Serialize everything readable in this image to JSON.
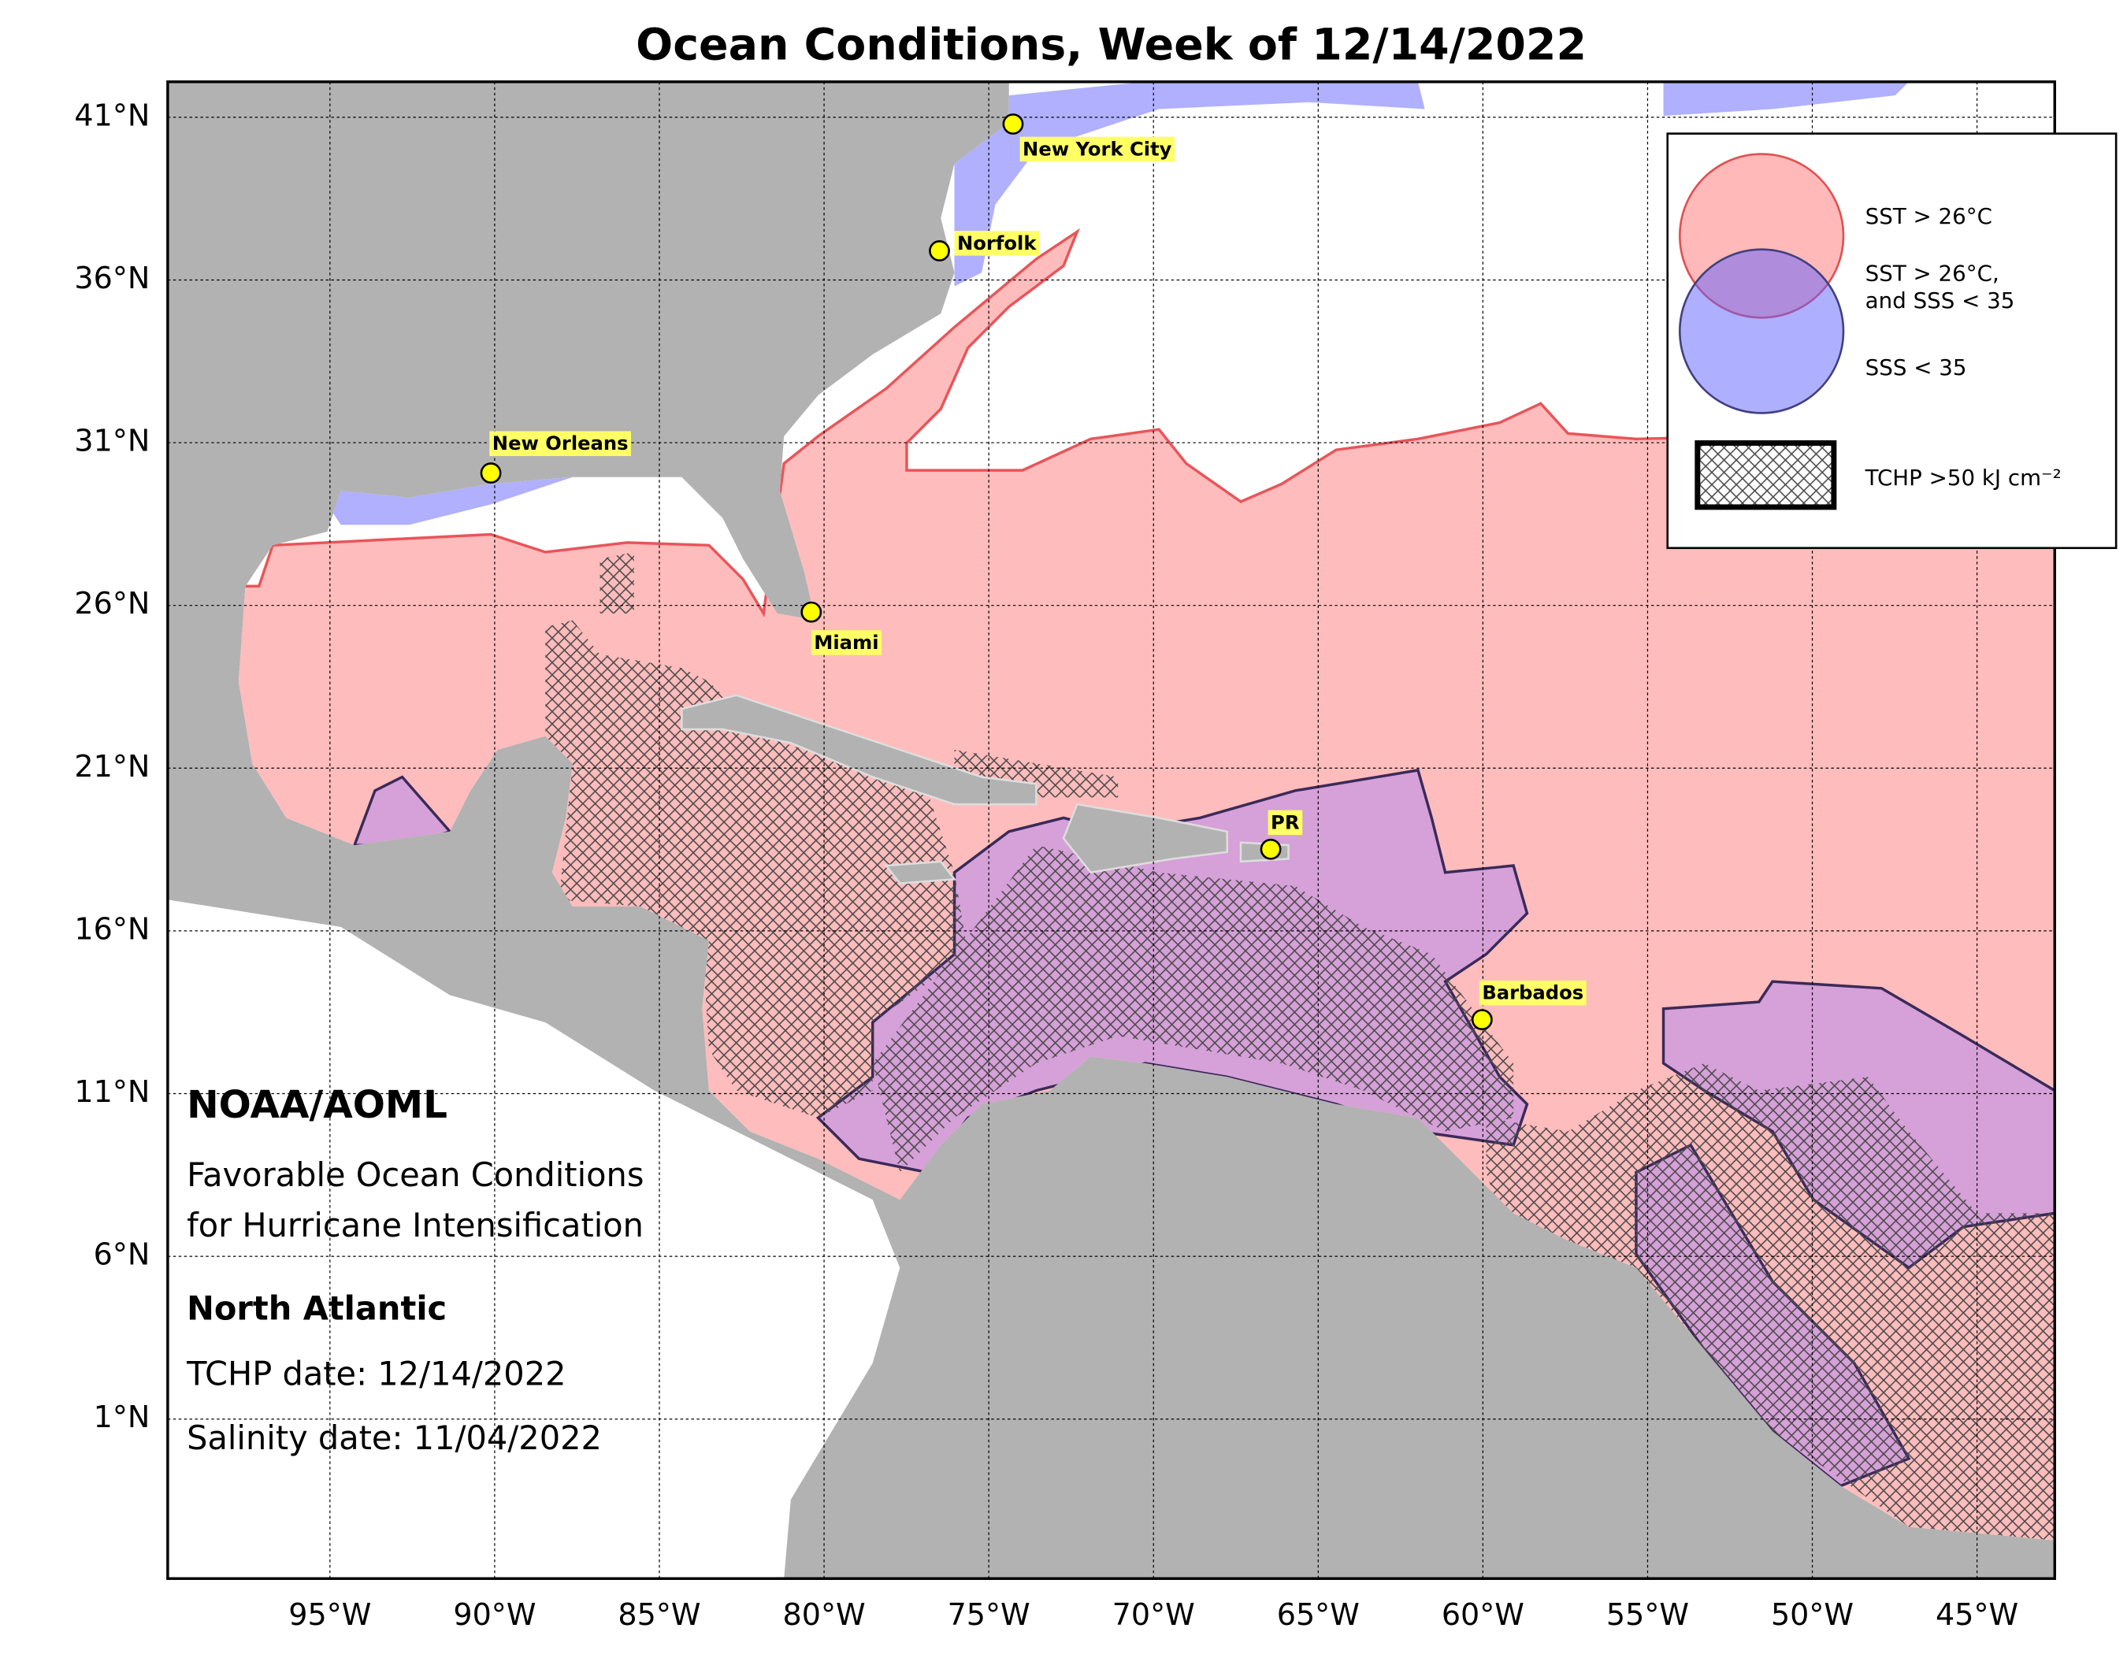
{
  "title": "Ocean Conditions, Week of 12/14/2022",
  "map": {
    "lat_ticks": [
      {
        "value": 41,
        "label": "41°N"
      },
      {
        "value": 36,
        "label": "36°N"
      },
      {
        "value": 31,
        "label": "31°N"
      },
      {
        "value": 26,
        "label": "26°N"
      },
      {
        "value": 21,
        "label": "21°N"
      },
      {
        "value": 16,
        "label": "16°N"
      },
      {
        "value": 11,
        "label": "11°N"
      },
      {
        "value": 6,
        "label": "6°N"
      },
      {
        "value": 1,
        "label": "1°N"
      }
    ],
    "lon_ticks": [
      {
        "value": -95,
        "label": "95°W"
      },
      {
        "value": -90,
        "label": "90°W"
      },
      {
        "value": -85,
        "label": "85°W"
      },
      {
        "value": -80,
        "label": "80°W"
      },
      {
        "value": -75,
        "label": "75°W"
      },
      {
        "value": -70,
        "label": "70°W"
      },
      {
        "value": -65,
        "label": "65°W"
      },
      {
        "value": -60,
        "label": "60°W"
      },
      {
        "value": -55,
        "label": "55°W"
      },
      {
        "value": -50,
        "label": "50°W"
      },
      {
        "value": -45,
        "label": "45°W"
      }
    ]
  },
  "cities": [
    "New York City",
    "Norfolk",
    "New Orleans",
    "Miami",
    "PR",
    "Barbados"
  ],
  "legend": {
    "sst": "SST > 26°C",
    "both": [
      "SST > 26°C,",
      "and SSS < 35"
    ],
    "sss": "SSS < 35",
    "tchp": "TCHP >50 kJ cm⁻²"
  },
  "info": {
    "org": "NOAA/AOML",
    "subtitle": [
      "Favorable Ocean Conditions",
      "for Hurricane Intensification"
    ],
    "region": "North Atlantic",
    "tchp_date": "TCHP date: 12/14/2022",
    "salinity_date": "Salinity date: 11/04/2022"
  }
}
